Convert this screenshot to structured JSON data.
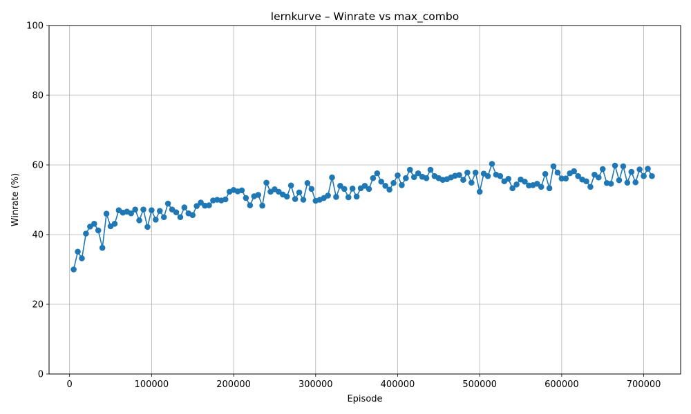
{
  "chart_data": {
    "type": "line",
    "title": "lernkurve – Winrate vs max_combo",
    "xlabel": "Episode",
    "ylabel": "Winrate (%)",
    "xlim": [
      -25000,
      745000
    ],
    "ylim": [
      0,
      100
    ],
    "xticks": [
      0,
      100000,
      200000,
      300000,
      400000,
      500000,
      600000,
      700000
    ],
    "yticks": [
      0,
      20,
      40,
      60,
      80,
      100
    ],
    "grid": true,
    "colors": {
      "series": "#1f77b4"
    },
    "series": [
      {
        "x": [
          5000,
          10000,
          15000,
          20000,
          25000,
          30000,
          35000,
          40000,
          45000,
          50000,
          55000,
          60000,
          65000,
          70000,
          75000,
          80000,
          85000,
          90000,
          95000,
          100000,
          105000,
          110000,
          115000,
          120000,
          125000,
          130000,
          135000,
          140000,
          145000,
          150000,
          155000,
          160000,
          165000,
          170000,
          175000,
          180000,
          185000,
          190000,
          195000,
          200000,
          205000,
          210000,
          215000,
          220000,
          225000,
          230000,
          235000,
          240000,
          245000,
          250000,
          255000,
          260000,
          265000,
          270000,
          275000,
          280000,
          285000,
          290000,
          295000,
          300000,
          305000,
          310000,
          315000,
          320000,
          325000,
          330000,
          335000,
          340000,
          345000,
          350000,
          355000,
          360000,
          365000,
          370000,
          375000,
          380000,
          385000,
          390000,
          395000,
          400000,
          405000,
          410000,
          415000,
          420000,
          425000,
          430000,
          435000,
          440000,
          445000,
          450000,
          455000,
          460000,
          465000,
          470000,
          475000,
          480000,
          485000,
          490000,
          495000,
          500000,
          505000,
          510000,
          515000,
          520000,
          525000,
          530000,
          535000,
          540000,
          545000,
          550000,
          555000,
          560000,
          565000,
          570000,
          575000,
          580000,
          585000,
          590000,
          595000,
          600000,
          605000,
          610000,
          615000,
          620000,
          625000,
          630000,
          635000,
          640000,
          645000,
          650000,
          655000,
          660000,
          665000,
          670000,
          675000,
          680000,
          685000,
          690000,
          695000,
          700000,
          705000,
          710000
        ],
        "y": [
          30.0,
          35.1,
          33.2,
          40.3,
          42.3,
          43.1,
          41.2,
          36.2,
          46.0,
          42.4,
          43.1,
          47.0,
          46.3,
          46.6,
          46.1,
          47.2,
          44.1,
          47.2,
          42.2,
          47.0,
          44.3,
          46.8,
          45.0,
          48.9,
          47.2,
          46.4,
          45.0,
          47.8,
          46.1,
          45.6,
          48.2,
          49.2,
          48.3,
          48.4,
          49.8,
          50.0,
          49.8,
          50.1,
          52.3,
          52.8,
          52.4,
          52.7,
          50.5,
          48.4,
          51.0,
          51.4,
          48.3,
          54.9,
          52.3,
          53.0,
          52.3,
          51.5,
          50.9,
          54.1,
          50.2,
          52.1,
          50.0,
          54.8,
          53.1,
          49.7,
          50.0,
          50.5,
          51.2,
          56.4,
          50.8,
          54.0,
          53.1,
          50.7,
          53.2,
          50.9,
          53.3,
          54.0,
          53.1,
          56.2,
          57.6,
          55.2,
          54.0,
          52.9,
          54.8,
          57.0,
          54.2,
          56.2,
          58.6,
          56.5,
          57.6,
          56.6,
          56.2,
          58.6,
          56.8,
          56.2,
          55.7,
          55.9,
          56.4,
          56.9,
          57.1,
          55.7,
          57.8,
          54.9,
          57.8,
          52.3,
          57.5,
          56.8,
          60.3,
          57.2,
          56.8,
          55.3,
          56.0,
          53.3,
          54.4,
          55.8,
          55.2,
          54.1,
          54.2,
          54.6,
          53.7,
          57.4,
          53.3,
          59.6,
          57.8,
          56.1,
          56.1,
          57.6,
          58.2,
          56.8,
          55.8,
          55.3,
          53.7,
          57.2,
          56.4,
          58.8,
          54.8,
          54.6,
          59.8,
          55.6,
          59.6,
          54.9,
          58.0,
          55.0,
          58.7,
          56.8,
          58.9,
          56.8
        ]
      }
    ]
  }
}
